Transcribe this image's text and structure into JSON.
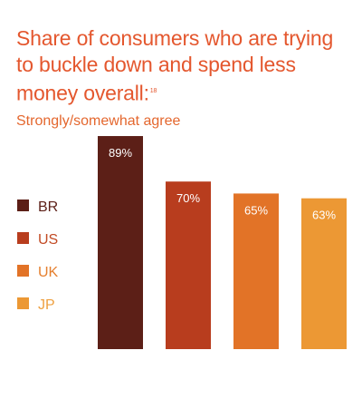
{
  "header": {
    "title": "Share of consumers who are trying to buckle down and spend less money overall:",
    "footnote": "18",
    "subtitle": "Strongly/somewhat agree"
  },
  "chart_data": {
    "type": "bar",
    "categories": [
      "BR",
      "US",
      "UK",
      "JP"
    ],
    "values": [
      89,
      70,
      65,
      63
    ],
    "data_labels": [
      "89%",
      "70%",
      "65%",
      "63%"
    ],
    "colors": [
      "#5c1f17",
      "#b83d1e",
      "#e27327",
      "#ec9834"
    ],
    "text_colors": [
      "#5c1f17",
      "#c24a24",
      "#e57f2e",
      "#eea040"
    ],
    "ylim": [
      0,
      100
    ],
    "legend": "left",
    "grid": false
  }
}
